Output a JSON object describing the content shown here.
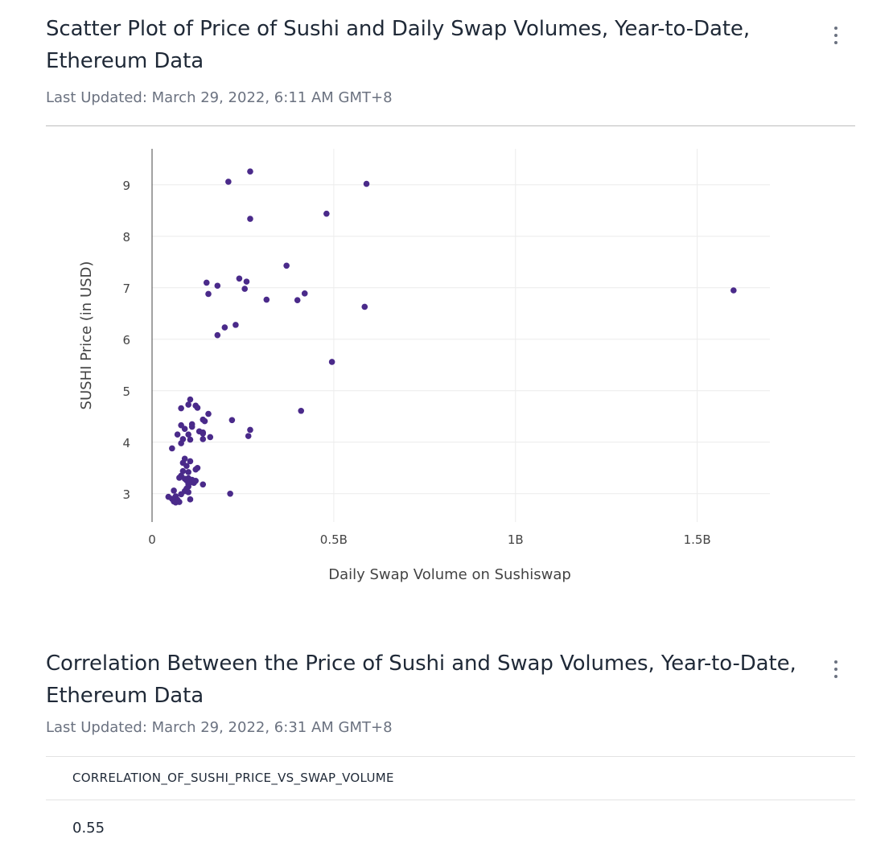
{
  "panel1": {
    "title": "Scatter Plot of Price of Sushi and Daily Swap Volumes, Year-to-Date, Ethereum Data",
    "updated": "Last Updated: March 29, 2022, 6:11 AM GMT+8",
    "menu_icon": "more-vertical-icon"
  },
  "chart_data": {
    "type": "scatter",
    "title": "",
    "xlabel": "Daily Swap Volume on Sushiswap",
    "ylabel": "SUSHI Price (in USD)",
    "xlim": [
      0,
      1.7
    ],
    "ylim": [
      2.45,
      9.7
    ],
    "x_unit": "billions",
    "xticks": [
      0,
      0.5,
      1,
      1.5
    ],
    "xtick_labels": [
      "0",
      "0.5B",
      "1B",
      "1.5B"
    ],
    "yticks": [
      3,
      4,
      5,
      6,
      7,
      8,
      9
    ],
    "ytick_labels": [
      "3",
      "4",
      "5",
      "6",
      "7",
      "8",
      "9"
    ],
    "grid": true,
    "color": "#4a2a8a",
    "series": [
      {
        "points": [
          [
            0.21,
            9.06
          ],
          [
            0.27,
            9.26
          ],
          [
            0.59,
            9.02
          ],
          [
            0.48,
            8.44
          ],
          [
            0.27,
            8.34
          ],
          [
            0.37,
            7.43
          ],
          [
            0.15,
            7.1
          ],
          [
            0.24,
            7.18
          ],
          [
            0.26,
            7.12
          ],
          [
            0.18,
            7.04
          ],
          [
            0.255,
            6.98
          ],
          [
            0.155,
            6.88
          ],
          [
            0.42,
            6.89
          ],
          [
            0.315,
            6.77
          ],
          [
            0.4,
            6.76
          ],
          [
            0.585,
            6.63
          ],
          [
            1.6,
            6.95
          ],
          [
            0.23,
            6.28
          ],
          [
            0.2,
            6.23
          ],
          [
            0.18,
            6.08
          ],
          [
            0.495,
            5.56
          ],
          [
            0.41,
            4.61
          ],
          [
            0.105,
            4.83
          ],
          [
            0.1,
            4.73
          ],
          [
            0.12,
            4.71
          ],
          [
            0.08,
            4.66
          ],
          [
            0.125,
            4.67
          ],
          [
            0.155,
            4.55
          ],
          [
            0.14,
            4.44
          ],
          [
            0.22,
            4.43
          ],
          [
            0.145,
            4.41
          ],
          [
            0.08,
            4.33
          ],
          [
            0.11,
            4.35
          ],
          [
            0.11,
            4.3
          ],
          [
            0.09,
            4.26
          ],
          [
            0.27,
            4.24
          ],
          [
            0.13,
            4.21
          ],
          [
            0.14,
            4.19
          ],
          [
            0.14,
            4.17
          ],
          [
            0.07,
            4.15
          ],
          [
            0.1,
            4.15
          ],
          [
            0.16,
            4.1
          ],
          [
            0.265,
            4.12
          ],
          [
            0.14,
            4.06
          ],
          [
            0.085,
            4.06
          ],
          [
            0.105,
            4.05
          ],
          [
            0.08,
            3.98
          ],
          [
            0.055,
            3.88
          ],
          [
            0.105,
            3.63
          ],
          [
            0.09,
            3.68
          ],
          [
            0.085,
            3.6
          ],
          [
            0.095,
            3.54
          ],
          [
            0.125,
            3.5
          ],
          [
            0.12,
            3.47
          ],
          [
            0.085,
            3.44
          ],
          [
            0.1,
            3.42
          ],
          [
            0.08,
            3.35
          ],
          [
            0.075,
            3.31
          ],
          [
            0.1,
            3.3
          ],
          [
            0.09,
            3.29
          ],
          [
            0.095,
            3.26
          ],
          [
            0.11,
            3.27
          ],
          [
            0.12,
            3.25
          ],
          [
            0.105,
            3.22
          ],
          [
            0.115,
            3.21
          ],
          [
            0.1,
            3.19
          ],
          [
            0.14,
            3.18
          ],
          [
            0.1,
            3.14
          ],
          [
            0.095,
            3.1
          ],
          [
            0.09,
            3.05
          ],
          [
            0.06,
            3.06
          ],
          [
            0.1,
            3.03
          ],
          [
            0.08,
            2.99
          ],
          [
            0.215,
            3.0
          ],
          [
            0.065,
            2.95
          ],
          [
            0.045,
            2.94
          ],
          [
            0.055,
            2.9
          ],
          [
            0.07,
            2.88
          ],
          [
            0.105,
            2.89
          ],
          [
            0.06,
            2.85
          ],
          [
            0.075,
            2.84
          ],
          [
            0.065,
            2.83
          ]
        ]
      }
    ]
  },
  "panel2": {
    "title": "Correlation Between the Price of Sushi and Swap Volumes, Year-to-Date, Ethereum Data",
    "updated": "Last Updated: March 29, 2022, 6:31 AM GMT+8",
    "menu_icon": "more-vertical-icon",
    "table": {
      "columns": [
        "CORRELATION_OF_SUSHI_PRICE_VS_SWAP_VOLUME"
      ],
      "rows": [
        [
          "0.55"
        ]
      ]
    }
  }
}
